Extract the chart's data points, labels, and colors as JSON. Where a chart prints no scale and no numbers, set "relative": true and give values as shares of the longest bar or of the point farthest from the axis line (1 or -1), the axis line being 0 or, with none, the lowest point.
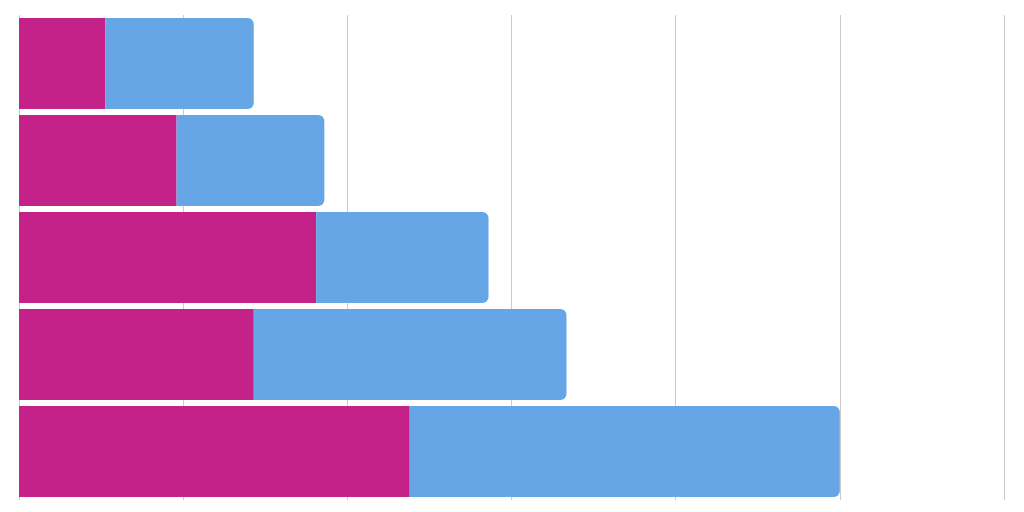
{
  "chart_data": {
    "type": "bar",
    "orientation": "horizontal",
    "stacked": true,
    "relative": true,
    "grid": "x",
    "categories": [
      null,
      null,
      null,
      null,
      null
    ],
    "series": [
      {
        "color": "#c42288",
        "values": [
          0.105,
          0.192,
          0.362,
          0.286,
          0.476
        ]
      },
      {
        "color": "#67a6e6",
        "values": [
          0.181,
          0.18,
          0.21,
          0.381,
          0.524
        ]
      }
    ]
  }
}
